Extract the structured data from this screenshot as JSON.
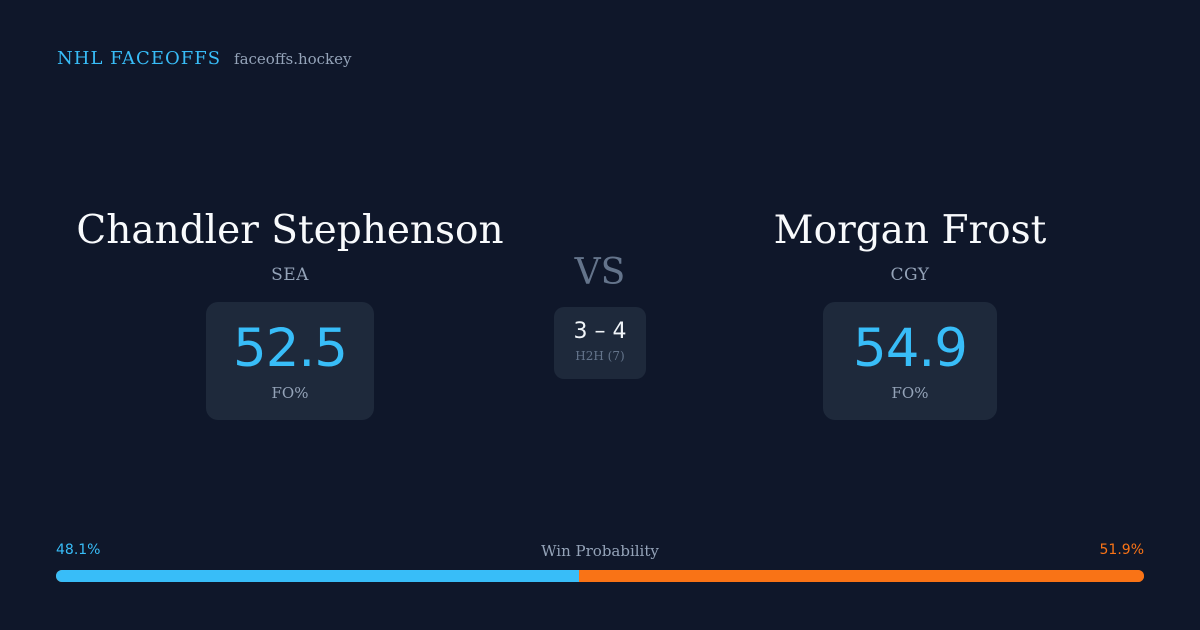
{
  "brand": {
    "name": "NHL FACEOFFS",
    "domain": "faceoffs.hockey"
  },
  "players": [
    {
      "name": "Chandler Stephenson",
      "team": "SEA",
      "stat_value": "52.5",
      "stat_label": "FO%"
    },
    {
      "name": "Morgan Frost",
      "team": "CGY",
      "stat_value": "54.9",
      "stat_label": "FO%"
    }
  ],
  "versus": {
    "label": "VS",
    "h2h_score": "3 – 4",
    "h2h_label": "H2H (7)"
  },
  "win_probability": {
    "title": "Win Probability",
    "left_text": "48.1%",
    "right_text": "51.9%",
    "left_fraction": 0.481,
    "right_fraction": 0.519
  },
  "colors": {
    "background": "#0f172a",
    "card": "#1e293b",
    "accent_left": "#38bdf8",
    "accent_right": "#f97316",
    "muted": "#94a3b8"
  }
}
